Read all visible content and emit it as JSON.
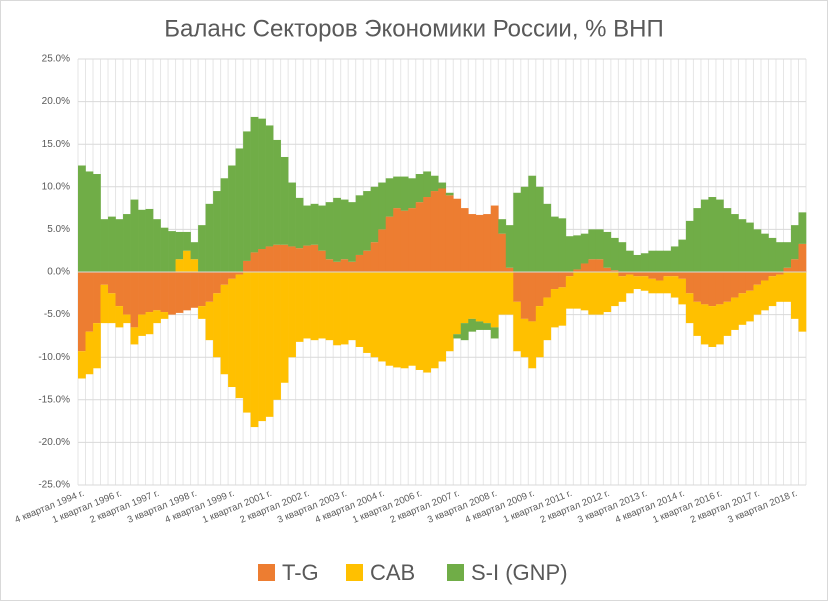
{
  "chart_data": {
    "type": "stacked_bar",
    "title": "Баланс Секторов Экономики России, % ВНП",
    "categories": [
      "4 квартал 1994 г.",
      null,
      null,
      null,
      null,
      "1 квартал 1996 г.",
      null,
      null,
      null,
      null,
      "2 квартал 1997 г.",
      null,
      null,
      null,
      null,
      "3 квартал 1998 г.",
      null,
      null,
      null,
      null,
      "4 квартал 1999 г.",
      null,
      null,
      null,
      null,
      "1 квартал 2001 г.",
      null,
      null,
      null,
      null,
      "2 квартал 2002 г.",
      null,
      null,
      null,
      null,
      "3 квартал 2003 г.",
      null,
      null,
      null,
      null,
      "4 квартал 2004 г.",
      null,
      null,
      null,
      null,
      "1 квартал 2006 г.",
      null,
      null,
      null,
      null,
      "2 квартал 2007 г.",
      null,
      null,
      null,
      null,
      "3 квартал 2008 г.",
      null,
      null,
      null,
      null,
      "4 квартал 2009 г.",
      null,
      null,
      null,
      null,
      "1 квартал 2011 г.",
      null,
      null,
      null,
      null,
      "2 квартал 2012 г.",
      null,
      null,
      null,
      null,
      "3 квартал 2013 г.",
      null,
      null,
      null,
      null,
      "4 квартал 2014 г.",
      null,
      null,
      null,
      null,
      "1 квартал 2016 г.",
      null,
      null,
      null,
      null,
      "2 квартал 2017 г.",
      null,
      null,
      null,
      null,
      "3 квартал 2018 г.",
      null
    ],
    "series": [
      {
        "name": "T-G",
        "color": "#ed7d31",
        "values": [
          -9.3,
          -7,
          -6,
          -1.5,
          -2.5,
          -4,
          -5,
          -6.5,
          -5,
          -4.7,
          -4.5,
          -4.7,
          -5,
          -4.8,
          -4.5,
          -4.2,
          -4,
          -3.5,
          -2.5,
          -1.5,
          -0.8,
          -0.3,
          1.3,
          2.3,
          2.7,
          3,
          3.2,
          3.2,
          3,
          2.8,
          3.1,
          3.2,
          2.5,
          1.5,
          1.2,
          1.5,
          1.2,
          2,
          2.5,
          3.5,
          5,
          6.5,
          7.5,
          7.2,
          7.5,
          8.2,
          8.8,
          9.5,
          9.8,
          9,
          8.6,
          7.5,
          6.8,
          6.7,
          6.8,
          7.8,
          4.5,
          0.5,
          -3.5,
          -5.5,
          -5.8,
          -4,
          -3,
          -2,
          -1.8,
          -0.5,
          0.3,
          1,
          1.5,
          1.5,
          0.5,
          0.2,
          -0.5,
          -0.3,
          -0.5,
          -0.5,
          -0.8,
          -1,
          -0.5,
          -0.5,
          -0.8,
          -2.5,
          -3.5,
          -3.8,
          -4,
          -3.8,
          -3.5,
          -3,
          -2.5,
          -2.2,
          -1.5,
          -1,
          -0.5,
          -0.3,
          0.5,
          1.5,
          3.3
        ]
      },
      {
        "name": "CAB",
        "color": "#ffc000",
        "values": [
          -3.2,
          -5,
          -5.3,
          -4.5,
          -3.5,
          -2.5,
          -1,
          -2,
          -2.5,
          -2.6,
          -1.5,
          -0.8,
          0,
          1.5,
          2.5,
          1.5,
          -1.5,
          -4.5,
          -7.5,
          -10.5,
          -12.7,
          -14.5,
          -16.5,
          -18.2,
          -17.5,
          -17,
          -15,
          -13,
          -10,
          -8.2,
          -7.8,
          -8,
          -7.8,
          -8,
          -8.6,
          -8.5,
          -8,
          -8.8,
          -9.5,
          -10,
          -10.5,
          -11,
          -11.2,
          -11.3,
          -11,
          -11.5,
          -11.8,
          -11.3,
          -10.5,
          -9.3,
          -7.3,
          -6,
          -5.5,
          -5.8,
          -6,
          -6.5,
          -5,
          -5,
          -5.8,
          -4.5,
          -5.5,
          -6,
          -5,
          -4.5,
          -4.5,
          -3.8,
          -4.3,
          -4.5,
          -5,
          -5,
          -4.7,
          -4,
          -3,
          -2.2,
          -1.5,
          -1.7,
          -1.7,
          -1.5,
          -2,
          -2.5,
          -3,
          -3.5,
          -4,
          -4.7,
          -4.8,
          -4.7,
          -4,
          -3.8,
          -3.7,
          -3.6,
          -3.5,
          -3.5,
          -3.5,
          -3.2,
          -3.5,
          -5.5,
          -7
        ]
      },
      {
        "name": "S-I (GNP)",
        "color": "#70ad47",
        "values": [
          12.5,
          11.8,
          11.5,
          6.2,
          6.5,
          6.2,
          6.8,
          8.5,
          7.3,
          7.4,
          6.2,
          5.2,
          4.8,
          3.2,
          2.2,
          2,
          5.5,
          8,
          9.5,
          11,
          12.5,
          14.5,
          15.2,
          15.9,
          15.3,
          14.2,
          12.3,
          10.3,
          7.5,
          5.9,
          4.7,
          4.8,
          5.3,
          6.7,
          7.5,
          7,
          7,
          7,
          7,
          6.5,
          5.5,
          4.5,
          3.7,
          4,
          3.5,
          3.3,
          3,
          1.8,
          0.7,
          0.3,
          -0.5,
          -2,
          -1.5,
          -1,
          -0.8,
          -1.3,
          1.7,
          5,
          9.3,
          10,
          11.3,
          10,
          8,
          6.5,
          6.3,
          4.2,
          4,
          3.5,
          3.5,
          3.5,
          4.2,
          3.8,
          3.5,
          2.5,
          2,
          2.2,
          2.5,
          2.5,
          2.5,
          3,
          3.8,
          6,
          7.5,
          8.5,
          8.8,
          8.5,
          7.5,
          6.8,
          6.2,
          5.8,
          5,
          4.5,
          4,
          3.5,
          3,
          4,
          3.7
        ]
      }
    ],
    "ylim": [
      -25,
      25
    ],
    "yticks": [
      {
        "value": -25,
        "label": "-25.0%"
      },
      {
        "value": -20,
        "label": "-20.0%"
      },
      {
        "value": -15,
        "label": "-15.0%"
      },
      {
        "value": -10,
        "label": "-10.0%"
      },
      {
        "value": -5,
        "label": "-5.0%"
      },
      {
        "value": 0,
        "label": "0.0%"
      },
      {
        "value": 5,
        "label": "5.0%"
      },
      {
        "value": 10,
        "label": "10.0%"
      },
      {
        "value": 15,
        "label": "15.0%"
      },
      {
        "value": 20,
        "label": "20.0%"
      },
      {
        "value": 25,
        "label": "25.0%"
      }
    ],
    "grid": true,
    "legend": "bottom"
  }
}
